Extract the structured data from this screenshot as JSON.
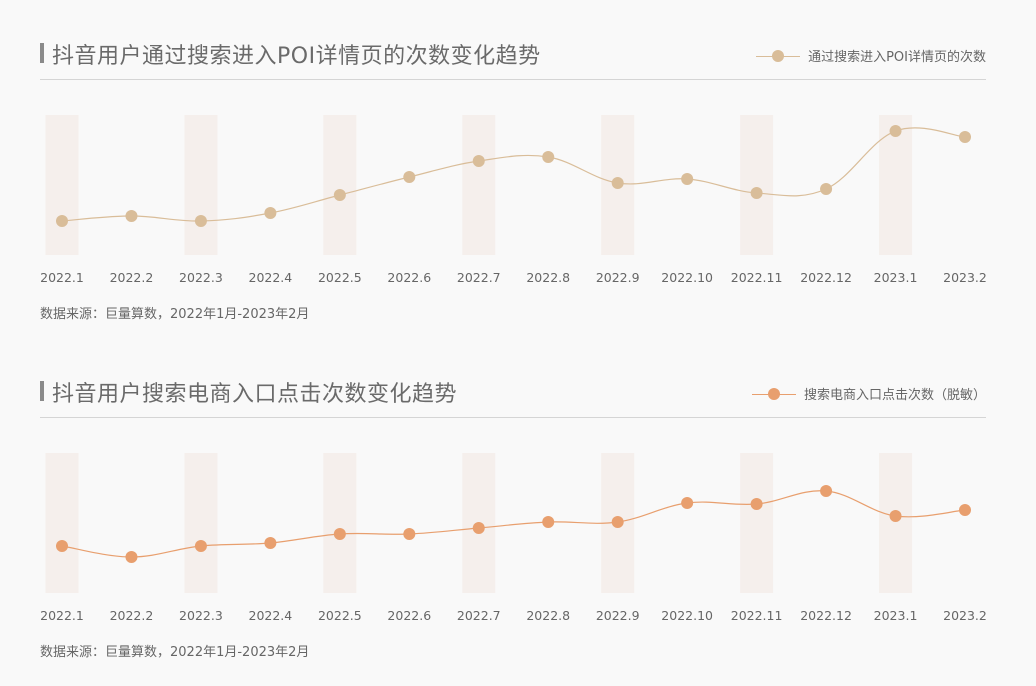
{
  "colors": {
    "band": "#f5efec",
    "series1": "#d9bd99",
    "series2": "#e89f6e"
  },
  "chart_data": [
    {
      "type": "line",
      "title": "抖音用户通过搜索进入POI详情页的次数变化趋势",
      "legend_position": "top-right",
      "categories": [
        "2022.1",
        "2022.2",
        "2022.3",
        "2022.4",
        "2022.5",
        "2022.6",
        "2022.7",
        "2022.8",
        "2022.9",
        "2022.10",
        "2022.11",
        "2022.12",
        "2023.1",
        "2023.2"
      ],
      "series": [
        {
          "name": "通过搜索进入POI详情页的次数",
          "values": [
            34,
            39,
            34,
            42,
            60,
            78,
            94,
            98,
            72,
            76,
            62,
            66,
            124,
            118
          ]
        }
      ],
      "ylim": [
        0,
        140
      ],
      "source": "数据来源：巨量算数，2022年1月-2023年2月"
    },
    {
      "type": "line",
      "title": "抖音用户搜索电商入口点击次数变化趋势",
      "legend_position": "top-right",
      "categories": [
        "2022.1",
        "2022.2",
        "2022.3",
        "2022.4",
        "2022.5",
        "2022.6",
        "2022.7",
        "2022.8",
        "2022.9",
        "2022.10",
        "2022.11",
        "2022.12",
        "2023.1",
        "2023.2"
      ],
      "series": [
        {
          "name": "搜索电商入口点击次数（脱敏）",
          "values": [
            47,
            36,
            47,
            50,
            59,
            59,
            65,
            71,
            71,
            90,
            89,
            102,
            77,
            83
          ]
        }
      ],
      "ylim": [
        0,
        140
      ],
      "source": "数据来源：巨量算数，2022年1月-2023年2月"
    }
  ]
}
